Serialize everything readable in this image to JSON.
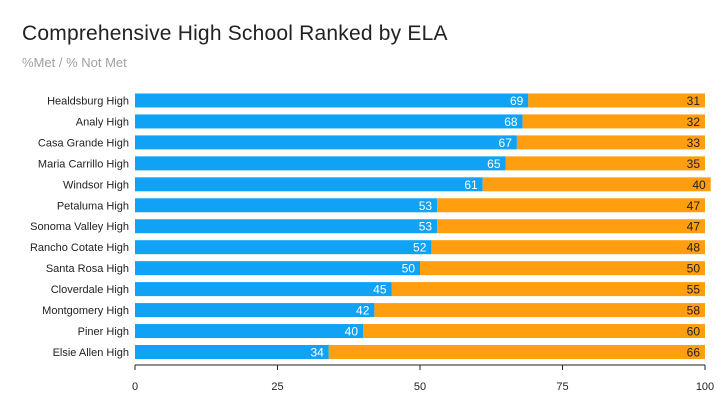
{
  "chart_data": {
    "type": "bar",
    "orientation": "horizontal",
    "stacked": true,
    "title": "Comprehensive High School Ranked by ELA",
    "subtitle": "%Met / % Not Met",
    "categories": [
      "Healdsburg High",
      "Analy High",
      "Casa Grande High",
      "Maria Carrillo High",
      "Windsor High",
      "Petaluma High",
      "Sonoma Valley High",
      "Rancho Cotate High",
      "Santa Rosa High",
      "Cloverdale High",
      "Montgomery High",
      "Piner High",
      "Elsie Allen High"
    ],
    "series": [
      {
        "name": "% Met",
        "color": "#10a2f5",
        "values": [
          69,
          68,
          67,
          65,
          61,
          53,
          53,
          52,
          50,
          45,
          42,
          40,
          34
        ]
      },
      {
        "name": "% Not Met",
        "color": "#ff9e0f",
        "values": [
          31,
          32,
          33,
          35,
          40,
          47,
          47,
          48,
          50,
          55,
          58,
          60,
          66
        ]
      }
    ],
    "xlim": [
      0,
      100
    ],
    "xticks": [
      0,
      25,
      50,
      75,
      100
    ],
    "xlabel": "",
    "ylabel": "",
    "grid": false
  }
}
